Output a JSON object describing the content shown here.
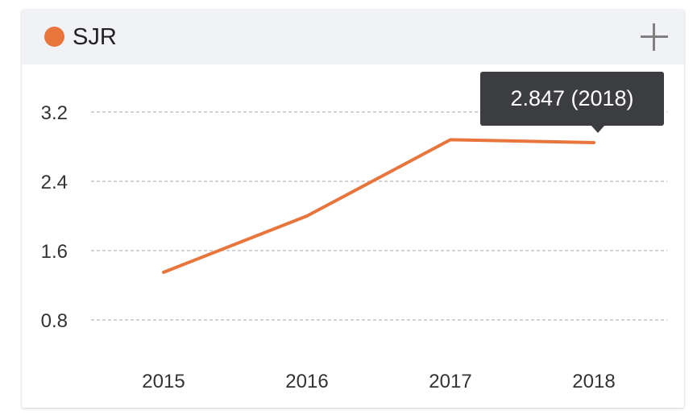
{
  "legend": {
    "label": "SJR",
    "color": "#e8753c"
  },
  "header": {
    "expand_icon": "plus-icon"
  },
  "tooltip": {
    "text": "2.847 (2018)",
    "background": "#3c3d40",
    "text_color": "#ffffff"
  },
  "chart_data": {
    "type": "line",
    "categories": [
      "2015",
      "2016",
      "2017",
      "2018"
    ],
    "series": [
      {
        "name": "SJR",
        "values": [
          1.35,
          2.0,
          2.88,
          2.847
        ],
        "color": "#e8753c"
      }
    ],
    "y_ticks": [
      "0.8",
      "1.6",
      "2.4",
      "3.2"
    ],
    "ylim": [
      0.8,
      3.2
    ],
    "grid": true,
    "grid_style": "dashed",
    "legend_position": "top-left"
  }
}
